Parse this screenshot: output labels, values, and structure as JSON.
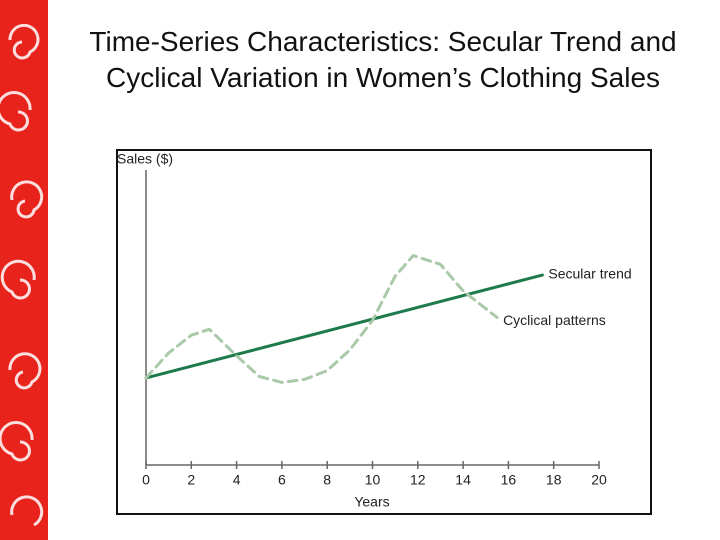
{
  "chart_data": {
    "type": "line",
    "title": "Time-Series Characteristics: Secular Trend and Cyclical Variation in Women’s Clothing Sales",
    "x_label": "Years",
    "y_label": "Sales ($)",
    "xlim": [
      0,
      20
    ],
    "xticks": [
      0,
      2,
      4,
      6,
      8,
      10,
      12,
      14,
      16,
      18,
      20
    ],
    "ylim": [
      0,
      100
    ],
    "series": [
      {
        "name": "Secular trend",
        "color": "#1e7a4a",
        "dashed": false,
        "x": [
          0,
          17.5
        ],
        "values": [
          29.5,
          64.4
        ]
      },
      {
        "name": "Cyclical patterns",
        "color": "#a9c9a9",
        "dashed": true,
        "x": [
          0,
          1,
          2,
          2.8,
          4,
          5,
          6,
          7,
          8,
          9,
          10,
          11,
          11.8,
          13,
          14,
          15.5
        ],
        "values": [
          29.5,
          38,
          44,
          46,
          37,
          30,
          28,
          29,
          32,
          39,
          49,
          64,
          71,
          68,
          59,
          50
        ]
      }
    ]
  }
}
